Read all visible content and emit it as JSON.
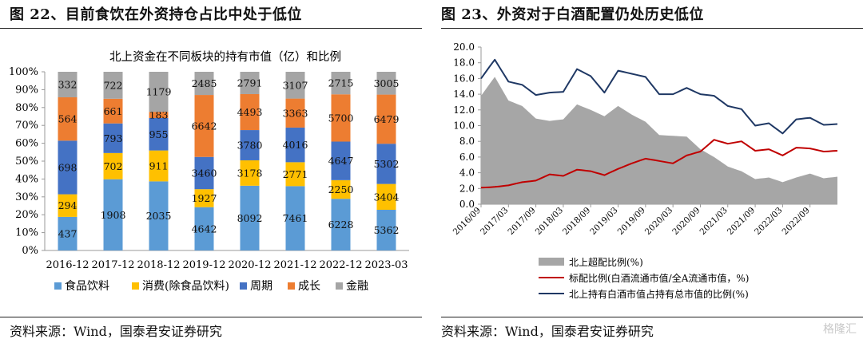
{
  "left_figure": {
    "title": "图 22、目前食饮在外资持仓占比中处于低位",
    "source": "资料来源：Wind，国泰君安证券研究"
  },
  "right_figure": {
    "title": "图 23、外资对于白酒配置仍处历史低位",
    "source": "资料来源：Wind，国泰君安证券研究"
  },
  "watermark": "格隆汇",
  "chart_data": [
    {
      "type": "bar",
      "stacked": "percent",
      "title": "北上资金在不同板块的持有市值（亿）和比例",
      "categories": [
        "2016-12",
        "2017-12",
        "2018-12",
        "2019-12",
        "2020-12",
        "2021-12",
        "2022-12",
        "2023-03"
      ],
      "y_ticks": [
        "0%",
        "10%",
        "20%",
        "30%",
        "40%",
        "50%",
        "60%",
        "70%",
        "80%",
        "90%",
        "100%"
      ],
      "ylim": [
        0,
        100
      ],
      "legend_position": "bottom",
      "series": [
        {
          "name": "食品饮料",
          "color": "#5B9BD5",
          "values": [
            437,
            1908,
            2035,
            4642,
            8092,
            7461,
            6228,
            5362
          ]
        },
        {
          "name": "消费(除食品饮料)",
          "color": "#FFC000",
          "values": [
            294,
            702,
            911,
            1927,
            3178,
            2771,
            2250,
            3404
          ]
        },
        {
          "name": "周期",
          "color": "#4472C4",
          "values": [
            698,
            793,
            955,
            3460,
            3780,
            4016,
            4647,
            5302
          ]
        },
        {
          "name": "成长",
          "color": "#ED7D31",
          "values": [
            564,
            661,
            183,
            6642,
            4493,
            3363,
            5700,
            6479
          ]
        },
        {
          "name": "金融",
          "color": "#A5A5A5",
          "values": [
            332,
            722,
            1179,
            2485,
            2791,
            3107,
            2715,
            3005
          ]
        }
      ]
    },
    {
      "type": "area_line",
      "x_tick_labels": [
        "2016/09",
        "2017/03",
        "2017/09",
        "2018/03",
        "2018/09",
        "2019/03",
        "2019/09",
        "2020/03",
        "2020/09",
        "2021/03",
        "2021/09",
        "2022/03",
        "2022/09"
      ],
      "y_ticks": [
        "0.0",
        "2.0",
        "4.0",
        "6.0",
        "8.0",
        "10.0",
        "12.0",
        "14.0",
        "16.0",
        "18.0",
        "20.0"
      ],
      "ylim": [
        0,
        20
      ],
      "legend_position": "bottom",
      "x_months": [
        "2016/09",
        "2016/10",
        "2016/11",
        "2016/12",
        "2017/01",
        "2017/02",
        "2017/03",
        "2017/04",
        "2017/05",
        "2017/06",
        "2017/07",
        "2017/08",
        "2017/09",
        "2017/10",
        "2017/11",
        "2017/12",
        "2018/01",
        "2018/02",
        "2018/03",
        "2018/04",
        "2018/05",
        "2018/06",
        "2018/07",
        "2018/08",
        "2018/09",
        "2018/10",
        "2018/11",
        "2018/12",
        "2019/01",
        "2019/02",
        "2019/03",
        "2019/04",
        "2019/05",
        "2019/06",
        "2019/07",
        "2019/08",
        "2019/09",
        "2019/10",
        "2019/11",
        "2019/12",
        "2020/01",
        "2020/02",
        "2020/03",
        "2020/04",
        "2020/05",
        "2020/06",
        "2020/07",
        "2020/08",
        "2020/09",
        "2020/10",
        "2020/11",
        "2020/12",
        "2021/01",
        "2021/02",
        "2021/03",
        "2021/04",
        "2021/05",
        "2021/06",
        "2021/07",
        "2021/08",
        "2021/09",
        "2021/10",
        "2021/11",
        "2021/12",
        "2022/01",
        "2022/02",
        "2022/03",
        "2022/04",
        "2022/05",
        "2022/06",
        "2022/07",
        "2022/08",
        "2022/09",
        "2022/10",
        "2022/11",
        "2022/12",
        "2023/01",
        "2023/02",
        "2023/03"
      ],
      "series": [
        {
          "name": "北上超配比例(%)",
          "kind": "area",
          "color": "#A6A6A6",
          "anchors": [
            [
              0,
              13.8
            ],
            [
              3,
              16.2
            ],
            [
              6,
              13.2
            ],
            [
              9,
              12.5
            ],
            [
              12,
              10.9
            ],
            [
              15,
              10.6
            ],
            [
              18,
              10.8
            ],
            [
              21,
              12.7
            ],
            [
              24,
              12.0
            ],
            [
              27,
              11.2
            ],
            [
              30,
              12.5
            ],
            [
              33,
              11.4
            ],
            [
              36,
              10.5
            ],
            [
              39,
              8.8
            ],
            [
              42,
              8.7
            ],
            [
              45,
              8.6
            ],
            [
              48,
              7.0
            ],
            [
              51,
              6.0
            ],
            [
              54,
              4.8
            ],
            [
              57,
              4.2
            ],
            [
              60,
              3.2
            ],
            [
              63,
              3.4
            ],
            [
              66,
              2.8
            ],
            [
              69,
              3.4
            ],
            [
              72,
              3.9
            ],
            [
              75,
              3.3
            ],
            [
              78,
              3.5
            ]
          ]
        },
        {
          "name": "标配比例(白酒流通市值/全A流通市值，%)",
          "kind": "line",
          "color": "#C00000",
          "anchors": [
            [
              0,
              2.1
            ],
            [
              3,
              2.2
            ],
            [
              6,
              2.4
            ],
            [
              9,
              2.8
            ],
            [
              12,
              3.0
            ],
            [
              15,
              3.8
            ],
            [
              18,
              3.6
            ],
            [
              21,
              4.4
            ],
            [
              24,
              4.2
            ],
            [
              27,
              3.7
            ],
            [
              30,
              4.5
            ],
            [
              33,
              5.2
            ],
            [
              36,
              5.8
            ],
            [
              39,
              5.5
            ],
            [
              42,
              5.2
            ],
            [
              45,
              6.2
            ],
            [
              48,
              6.7
            ],
            [
              51,
              8.2
            ],
            [
              54,
              7.7
            ],
            [
              57,
              8.0
            ],
            [
              60,
              6.8
            ],
            [
              63,
              7.0
            ],
            [
              66,
              6.2
            ],
            [
              69,
              7.2
            ],
            [
              72,
              7.1
            ],
            [
              75,
              6.7
            ],
            [
              78,
              6.8
            ]
          ]
        },
        {
          "name": "北上持有白酒市值占持有总市值的比例(%)",
          "kind": "line",
          "color": "#1F3864",
          "anchors": [
            [
              0,
              16.0
            ],
            [
              3,
              18.4
            ],
            [
              6,
              15.6
            ],
            [
              9,
              15.2
            ],
            [
              12,
              13.9
            ],
            [
              15,
              14.2
            ],
            [
              18,
              14.3
            ],
            [
              21,
              17.2
            ],
            [
              24,
              16.3
            ],
            [
              27,
              14.2
            ],
            [
              30,
              17.0
            ],
            [
              33,
              16.6
            ],
            [
              36,
              16.2
            ],
            [
              39,
              14.0
            ],
            [
              42,
              14.0
            ],
            [
              45,
              14.8
            ],
            [
              48,
              14.0
            ],
            [
              51,
              13.8
            ],
            [
              54,
              12.5
            ],
            [
              57,
              12.1
            ],
            [
              60,
              10.0
            ],
            [
              63,
              10.3
            ],
            [
              66,
              9.0
            ],
            [
              69,
              10.8
            ],
            [
              72,
              11.0
            ],
            [
              75,
              10.1
            ],
            [
              78,
              10.2
            ]
          ]
        }
      ]
    }
  ]
}
